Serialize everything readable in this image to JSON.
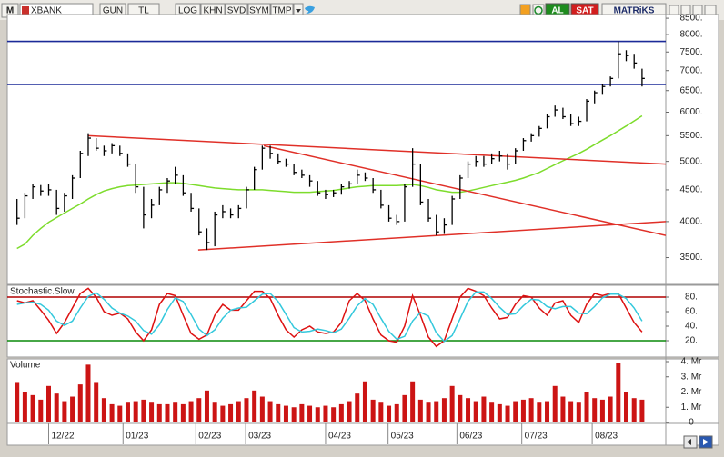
{
  "toolbar": {
    "prefix": "M",
    "symbol": "XBANK",
    "buttons": [
      "GUN",
      "TL",
      "LOG",
      "KHN",
      "SVD",
      "SYM",
      "TMP"
    ],
    "buy": "AL",
    "sell": "SAT",
    "brand": "MATRiKS"
  },
  "chart_data": [
    {
      "type": "ohlc",
      "log": true,
      "color": "#000000",
      "xlim": [
        -1,
        82
      ],
      "ylim": [
        3180,
        8560
      ],
      "yticks": [
        {
          "value": 3500,
          "label": "3500."
        },
        {
          "value": 4000,
          "label": "4000."
        },
        {
          "value": 4500,
          "label": "4500."
        },
        {
          "value": 5000,
          "label": "5000."
        },
        {
          "value": 5500,
          "label": "5500."
        },
        {
          "value": 6000,
          "label": "6000."
        },
        {
          "value": 6500,
          "label": "6500."
        },
        {
          "value": 7000,
          "label": "7000."
        },
        {
          "value": 7500,
          "label": "7500."
        },
        {
          "value": 8000,
          "label": "8000."
        },
        {
          "value": 8500,
          "label": "8500."
        }
      ],
      "high": [
        4350,
        4450,
        4600,
        4580,
        4600,
        4500,
        4450,
        4750,
        5200,
        5550,
        5450,
        5300,
        5350,
        5300,
        5150,
        4950,
        4550,
        4350,
        4550,
        4700,
        4900,
        4750,
        4450,
        4200,
        3900,
        4150,
        4250,
        4200,
        4250,
        4550,
        4900,
        5300,
        5300,
        5150,
        5050,
        4950,
        4850,
        4750,
        4650,
        4500,
        4500,
        4600,
        4650,
        4850,
        4800,
        4700,
        4500,
        4250,
        4100,
        4600,
        5250,
        4950,
        4350,
        4100,
        4050,
        4400,
        4750,
        5000,
        5100,
        5100,
        5150,
        5200,
        5150,
        5250,
        5450,
        5550,
        5700,
        5950,
        6150,
        6100,
        5950,
        5900,
        6300,
        6500,
        6650,
        6850,
        7800,
        7550,
        7450,
        7050
      ],
      "low": [
        3950,
        4050,
        4350,
        4400,
        4400,
        4100,
        4150,
        4350,
        4700,
        5100,
        5200,
        5100,
        5150,
        5100,
        4900,
        4450,
        3900,
        4050,
        4250,
        4450,
        4600,
        4400,
        4150,
        3800,
        3600,
        3650,
        4050,
        4050,
        4050,
        4200,
        4500,
        4850,
        5050,
        4950,
        4900,
        4750,
        4700,
        4550,
        4400,
        4350,
        4380,
        4420,
        4520,
        4600,
        4650,
        4450,
        4200,
        4000,
        3950,
        4000,
        4550,
        4250,
        4000,
        3800,
        3820,
        3950,
        4350,
        4700,
        4900,
        4900,
        4950,
        5000,
        4850,
        4950,
        5200,
        5380,
        5480,
        5650,
        5900,
        5850,
        5700,
        5700,
        5800,
        6200,
        6400,
        6600,
        6800,
        7250,
        7050,
        6600
      ],
      "close": [
        4050,
        4400,
        4550,
        4480,
        4500,
        4200,
        4400,
        4700,
        5150,
        5450,
        5250,
        5200,
        5300,
        5150,
        4950,
        4550,
        4100,
        4250,
        4500,
        4650,
        4750,
        4450,
        4200,
        3850,
        3700,
        4100,
        4150,
        4100,
        4200,
        4500,
        4850,
        5250,
        5150,
        5000,
        4950,
        4800,
        4750,
        4650,
        4450,
        4420,
        4450,
        4550,
        4600,
        4750,
        4700,
        4500,
        4250,
        4050,
        4000,
        4550,
        4950,
        4300,
        4050,
        3850,
        3950,
        4350,
        4700,
        4950,
        5000,
        4950,
        5050,
        5100,
        4950,
        5200,
        5400,
        5500,
        5650,
        5900,
        6050,
        5900,
        5750,
        5800,
        6250,
        6450,
        6600,
        6800,
        7450,
        7400,
        7200,
        6800
      ],
      "ma": {
        "color": "#7ddc2c",
        "values": [
          3620,
          3680,
          3800,
          3900,
          3990,
          4060,
          4130,
          4200,
          4270,
          4350,
          4420,
          4480,
          4520,
          4550,
          4570,
          4580,
          4590,
          4600,
          4610,
          4620,
          4620,
          4610,
          4590,
          4570,
          4550,
          4530,
          4520,
          4510,
          4500,
          4500,
          4500,
          4500,
          4490,
          4480,
          4470,
          4460,
          4460,
          4460,
          4470,
          4480,
          4490,
          4510,
          4530,
          4550,
          4560,
          4570,
          4570,
          4570,
          4570,
          4580,
          4590,
          4570,
          4540,
          4500,
          4480,
          4460,
          4460,
          4480,
          4510,
          4540,
          4570,
          4600,
          4630,
          4660,
          4700,
          4750,
          4800,
          4870,
          4940,
          5010,
          5080,
          5150,
          5230,
          5320,
          5410,
          5500,
          5600,
          5700,
          5810,
          5920
        ]
      },
      "trendlines": [
        {
          "color": "#e03028",
          "points": [
            [
              9,
              5500
            ],
            [
              82,
              4950
            ]
          ]
        },
        {
          "color": "#e03028",
          "points": [
            [
              31.2,
              5300
            ],
            [
              82,
              3800
            ]
          ]
        },
        {
          "color": "#e03028",
          "points": [
            [
              22.9,
              3600
            ],
            [
              82,
              4000
            ]
          ]
        }
      ],
      "levels": [
        {
          "value": 7800,
          "color": "#1b2a98"
        },
        {
          "value": 6650,
          "color": "#1b2a98"
        }
      ]
    },
    {
      "type": "line",
      "title": "Stochastic.Slow",
      "ylim": [
        0,
        100
      ],
      "yticks": [
        {
          "value": 20,
          "label": "20."
        },
        {
          "value": 40,
          "label": "40."
        },
        {
          "value": 60,
          "label": "60."
        },
        {
          "value": 80,
          "label": "80."
        }
      ],
      "levels": [
        {
          "value": 80,
          "color": "#b00000"
        },
        {
          "value": 20,
          "color": "#0a8a0a"
        }
      ],
      "series": [
        {
          "color": "#dd1111",
          "values": [
            75,
            72,
            75,
            62,
            48,
            30,
            45,
            65,
            85,
            92,
            80,
            60,
            55,
            58,
            50,
            32,
            20,
            35,
            70,
            85,
            82,
            55,
            30,
            22,
            28,
            55,
            70,
            62,
            62,
            75,
            88,
            88,
            78,
            55,
            35,
            25,
            35,
            40,
            32,
            30,
            32,
            45,
            75,
            85,
            75,
            50,
            28,
            20,
            18,
            40,
            82,
            55,
            25,
            12,
            20,
            50,
            80,
            92,
            88,
            82,
            65,
            50,
            52,
            70,
            82,
            80,
            65,
            55,
            72,
            75,
            55,
            45,
            70,
            85,
            82,
            85,
            85,
            65,
            45,
            32
          ]
        },
        {
          "color": "#33c8dc",
          "values": [
            70,
            72,
            73,
            70,
            62,
            47,
            41,
            47,
            65,
            81,
            86,
            77,
            65,
            58,
            54,
            47,
            34,
            29,
            42,
            63,
            79,
            74,
            56,
            36,
            27,
            35,
            51,
            62,
            65,
            66,
            75,
            84,
            85,
            74,
            56,
            38,
            32,
            33,
            36,
            34,
            31,
            36,
            51,
            68,
            78,
            70,
            51,
            33,
            22,
            26,
            47,
            59,
            54,
            31,
            19,
            27,
            50,
            74,
            87,
            87,
            78,
            66,
            56,
            57,
            68,
            77,
            76,
            67,
            64,
            67,
            67,
            58,
            57,
            67,
            79,
            84,
            84,
            78,
            65,
            47
          ]
        }
      ]
    },
    {
      "type": "bar",
      "title": "Volume",
      "color": "#cc1414",
      "ylim": [
        0,
        4
      ],
      "yticks": [
        0,
        {
          "value": 1,
          "label": "1. Mr"
        },
        {
          "value": 2,
          "label": "2. Mr"
        },
        {
          "value": 3,
          "label": "3. Mr"
        },
        {
          "value": 4,
          "label": "4. Mr"
        }
      ],
      "xticks": [
        {
          "value": 4,
          "label": "12/22"
        },
        {
          "value": 13.4,
          "label": "01/23"
        },
        {
          "value": 22.6,
          "label": "02/23"
        },
        {
          "value": 28.9,
          "label": "03/23"
        },
        {
          "value": 39,
          "label": "04/23"
        },
        {
          "value": 46.9,
          "label": "05/23"
        },
        {
          "value": 55.6,
          "label": "06/23"
        },
        {
          "value": 63.8,
          "label": "07/23"
        },
        {
          "value": 72.7,
          "label": "08/23"
        }
      ],
      "values": [
        2.6,
        2.0,
        1.8,
        1.5,
        2.4,
        1.9,
        1.4,
        1.7,
        2.5,
        3.8,
        2.6,
        1.6,
        1.2,
        1.1,
        1.3,
        1.4,
        1.5,
        1.3,
        1.2,
        1.2,
        1.3,
        1.2,
        1.4,
        1.6,
        2.1,
        1.3,
        1.1,
        1.2,
        1.4,
        1.6,
        2.1,
        1.7,
        1.4,
        1.2,
        1.1,
        1.0,
        1.2,
        1.1,
        1.0,
        1.1,
        1.0,
        1.2,
        1.4,
        1.9,
        2.7,
        1.5,
        1.3,
        1.1,
        1.2,
        1.8,
        2.7,
        1.5,
        1.3,
        1.4,
        1.6,
        2.4,
        1.8,
        1.6,
        1.4,
        1.7,
        1.3,
        1.2,
        1.1,
        1.4,
        1.5,
        1.6,
        1.3,
        1.4,
        2.4,
        1.7,
        1.4,
        1.3,
        2.0,
        1.6,
        1.5,
        1.7,
        3.9,
        2.0,
        1.6,
        1.5
      ]
    }
  ]
}
